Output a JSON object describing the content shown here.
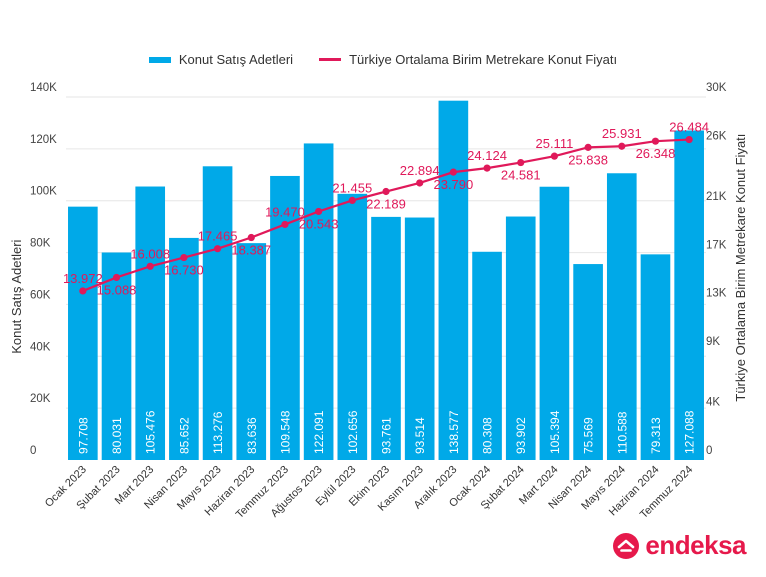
{
  "legend": {
    "bar_label": "Konut Satış Adetleri",
    "line_label": "Türkiye Ortalama Birim Metrekare Konut Fiyatı"
  },
  "brand": {
    "name": "endeksa",
    "color": "#e6194b"
  },
  "chart_data": {
    "type": "bar+line",
    "categories": [
      "Ocak 2023",
      "Şubat 2023",
      "Mart 2023",
      "Nisan 2023",
      "Mayıs 2023",
      "Haziran 2023",
      "Temmuz 2023",
      "Ağustos 2023",
      "Eylül 2023",
      "Ekim 2023",
      "Kasım 2023",
      "Aralık 2023",
      "Ocak 2024",
      "Şubat 2024",
      "Mart 2024",
      "Nisan 2024",
      "Mayıs 2024",
      "Haziran 2024",
      "Temmuz 2024"
    ],
    "series": [
      {
        "name": "Konut Satış Adetleri",
        "type": "bar",
        "axis": "left",
        "color": "#00a9e8",
        "values": [
          97708,
          80031,
          105476,
          85652,
          113276,
          83636,
          109548,
          122091,
          102656,
          93761,
          93514,
          138577,
          80308,
          93902,
          105394,
          75569,
          110588,
          79313,
          127088
        ],
        "labels": [
          "97.708",
          "80.031",
          "105.476",
          "85.652",
          "113.276",
          "83.636",
          "109.548",
          "122.091",
          "102.656",
          "93.761",
          "93.514",
          "138.577",
          "80.308",
          "93.902",
          "105.394",
          "75.569",
          "110.588",
          "79.313",
          "127.088"
        ]
      },
      {
        "name": "Türkiye Ortalama Birim Metrekare Konut Fiyatı",
        "type": "line",
        "axis": "right",
        "color": "#e0195a",
        "values": [
          13972,
          15088,
          16008,
          16730,
          17465,
          18387,
          19470,
          20543,
          21455,
          22189,
          22894,
          23790,
          24124,
          24581,
          25111,
          25838,
          25931,
          26348,
          26484
        ],
        "labels": [
          "13.972",
          "15.088",
          "16.008",
          "16.730",
          "17.465",
          "18.387",
          "19.470",
          "20.543",
          "21.455",
          "22.189",
          "22.894",
          "23.790",
          "24.124",
          "24.581",
          "25.111",
          "25.838",
          "25.931",
          "26.348",
          "26.484"
        ]
      }
    ],
    "ylabel_left": "Konut Satış Adetleri",
    "ylabel_right": "Türkiye Ortalama Birim Metrekare Konut Fiyatı",
    "ylim_left": [
      0,
      140000
    ],
    "ylim_right": [
      0,
      30000
    ],
    "yticks_left": [
      0,
      20000,
      40000,
      60000,
      80000,
      100000,
      120000,
      140000
    ],
    "yticks_left_labels": [
      "0",
      "20K",
      "40K",
      "60K",
      "80K",
      "100K",
      "120K",
      "140K"
    ],
    "yticks_right": [
      0,
      4000,
      9000,
      13000,
      17000,
      21000,
      26000,
      30000
    ],
    "yticks_right_labels": [
      "0",
      "4K",
      "9K",
      "13K",
      "17K",
      "21K",
      "26K",
      "30K"
    ],
    "grid": true,
    "legend_position": "top"
  }
}
